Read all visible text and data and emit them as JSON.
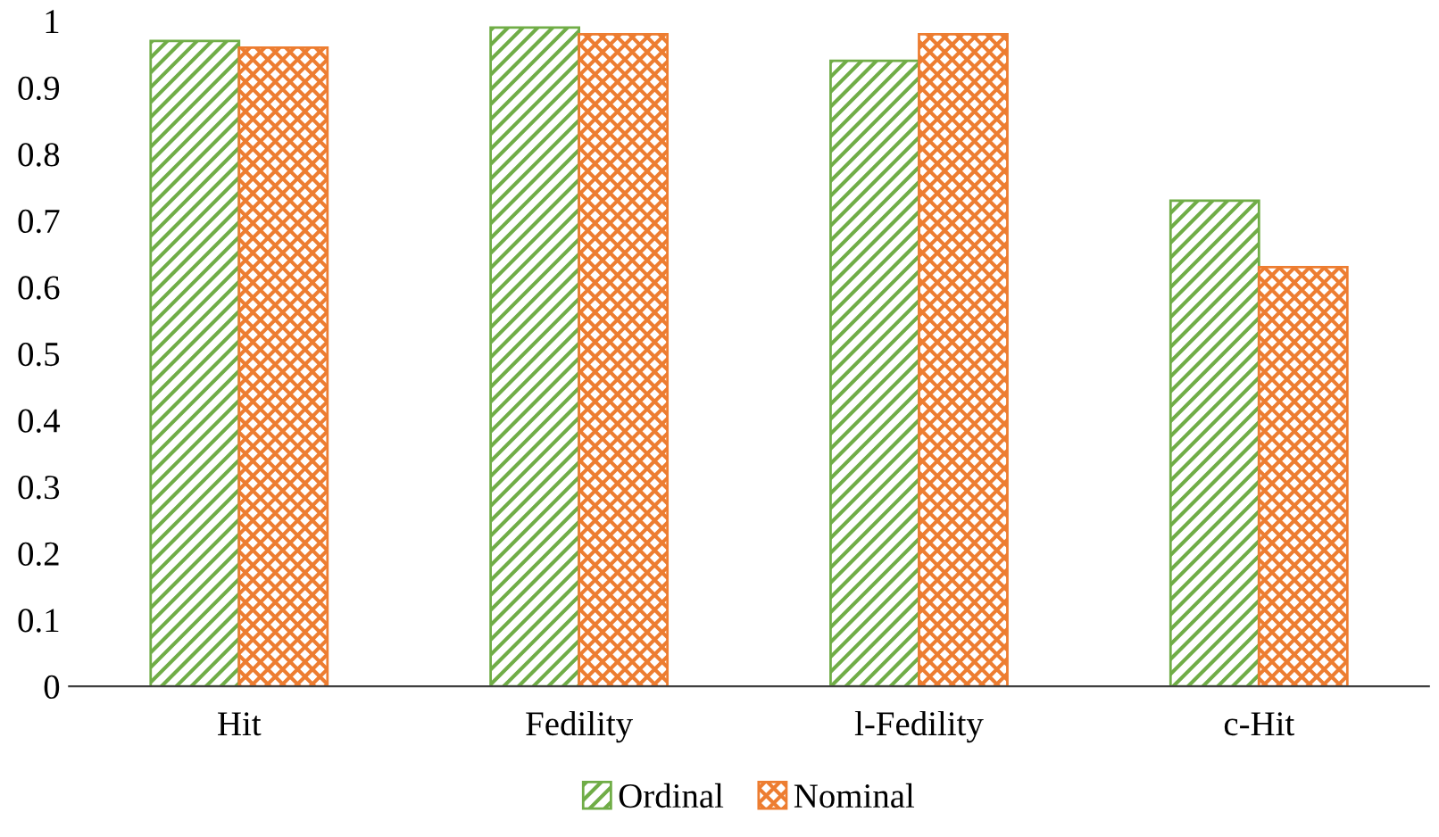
{
  "chart_data": {
    "type": "bar",
    "categories": [
      "Hit",
      "Fedility",
      "l-Fedility",
      "c-Hit"
    ],
    "series": [
      {
        "name": "Ordinal",
        "color": "#70ad47",
        "values": [
          0.97,
          0.99,
          0.94,
          0.73
        ]
      },
      {
        "name": "Nominal",
        "color": "#ed7d31",
        "values": [
          0.96,
          0.98,
          0.98,
          0.63
        ]
      }
    ],
    "ylim": [
      0,
      1
    ],
    "yticks": [
      0,
      0.1,
      0.2,
      0.3,
      0.4,
      0.5,
      0.6,
      0.7,
      0.8,
      0.9,
      1
    ],
    "grid": false,
    "legend": "bottom"
  }
}
